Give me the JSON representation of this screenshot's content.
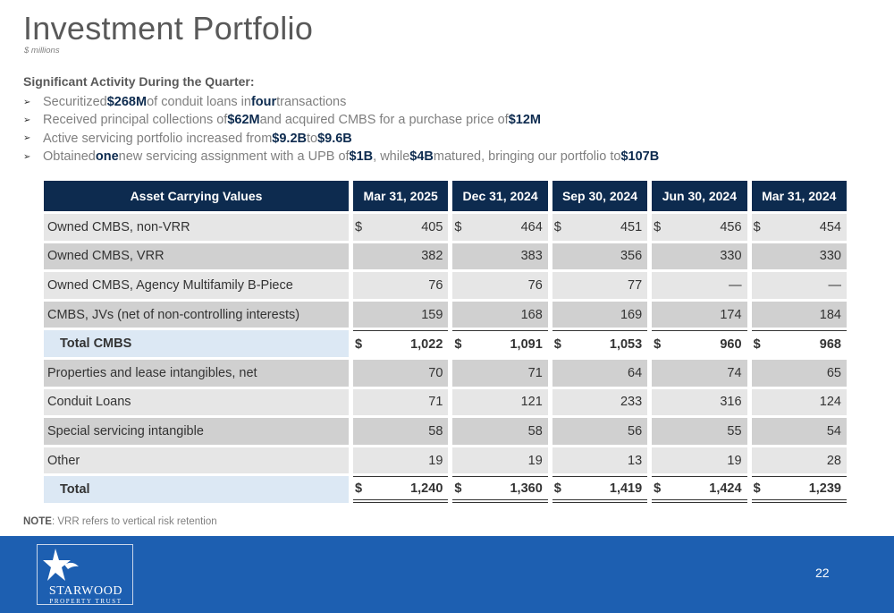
{
  "header": {
    "title": "Investment Portfolio",
    "subtitle": "$ millions"
  },
  "activity": {
    "heading": "Significant Activity During the Quarter:",
    "bullets": [
      [
        {
          "t": "Securitized ",
          "b": false
        },
        {
          "t": "$268M",
          "b": true
        },
        {
          "t": " of conduit loans in ",
          "b": false
        },
        {
          "t": "four",
          "b": true
        },
        {
          "t": " transactions",
          "b": false
        }
      ],
      [
        {
          "t": "Received principal collections of ",
          "b": false
        },
        {
          "t": "$62M",
          "b": true
        },
        {
          "t": " and acquired CMBS for a purchase price of ",
          "b": false
        },
        {
          "t": "$12M",
          "b": true
        }
      ],
      [
        {
          "t": "Active servicing portfolio increased from ",
          "b": false
        },
        {
          "t": "$9.2B",
          "b": true
        },
        {
          "t": " to ",
          "b": false
        },
        {
          "t": "$9.6B",
          "b": true
        }
      ],
      [
        {
          "t": "Obtained ",
          "b": false
        },
        {
          "t": "one",
          "b": true
        },
        {
          "t": " new servicing assignment with a UPB of ",
          "b": false
        },
        {
          "t": "$1B",
          "b": true
        },
        {
          "t": ", while ",
          "b": false
        },
        {
          "t": "$4B",
          "b": true
        },
        {
          "t": " matured, bringing our portfolio to ",
          "b": false
        },
        {
          "t": "$107B",
          "b": true
        }
      ]
    ]
  },
  "table": {
    "header_label": "Asset Carrying Values",
    "periods": [
      "Mar 31, 2025",
      "Dec 31, 2024",
      "Sep 30, 2024",
      "Jun 30, 2024",
      "Mar 31, 2024"
    ],
    "rows": [
      {
        "label": "Owned CMBS, non-VRR",
        "values": [
          "405",
          "464",
          "451",
          "456",
          "454"
        ],
        "dollar": true,
        "style": "light"
      },
      {
        "label": "Owned CMBS, VRR",
        "values": [
          "382",
          "383",
          "356",
          "330",
          "330"
        ],
        "dollar": false,
        "style": "dark"
      },
      {
        "label": "Owned CMBS, Agency Multifamily B-Piece",
        "values": [
          "76",
          "76",
          "77",
          "—",
          "—"
        ],
        "dollar": false,
        "style": "light"
      },
      {
        "label": "CMBS, JVs (net of non-controlling interests)",
        "values": [
          "159",
          "168",
          "169",
          "174",
          "184"
        ],
        "dollar": false,
        "style": "dark"
      },
      {
        "label": "Total CMBS",
        "values": [
          "1,022",
          "1,091",
          "1,053",
          "960",
          "968"
        ],
        "dollar": true,
        "style": "total"
      },
      {
        "label": "Properties and lease intangibles, net",
        "values": [
          "70",
          "71",
          "64",
          "74",
          "65"
        ],
        "dollar": false,
        "style": "dark"
      },
      {
        "label": "Conduit Loans",
        "values": [
          "71",
          "121",
          "233",
          "316",
          "124"
        ],
        "dollar": false,
        "style": "light"
      },
      {
        "label": "Special servicing intangible",
        "values": [
          "58",
          "58",
          "56",
          "55",
          "54"
        ],
        "dollar": false,
        "style": "dark"
      },
      {
        "label": "Other",
        "values": [
          "19",
          "19",
          "13",
          "19",
          "28"
        ],
        "dollar": false,
        "style": "light"
      },
      {
        "label": "Total",
        "values": [
          "1,240",
          "1,360",
          "1,419",
          "1,424",
          "1,239"
        ],
        "dollar": true,
        "style": "grand"
      }
    ],
    "currency_symbol": "$"
  },
  "note": {
    "label": "NOTE",
    "text": ":  VRR refers to vertical risk retention"
  },
  "footer": {
    "logo_name": "STARWOOD",
    "logo_sub": "PROPERTY TRUST",
    "page_number": "22",
    "colors": {
      "band": "#1d5fb1",
      "navy": "#0d2b4f"
    }
  }
}
